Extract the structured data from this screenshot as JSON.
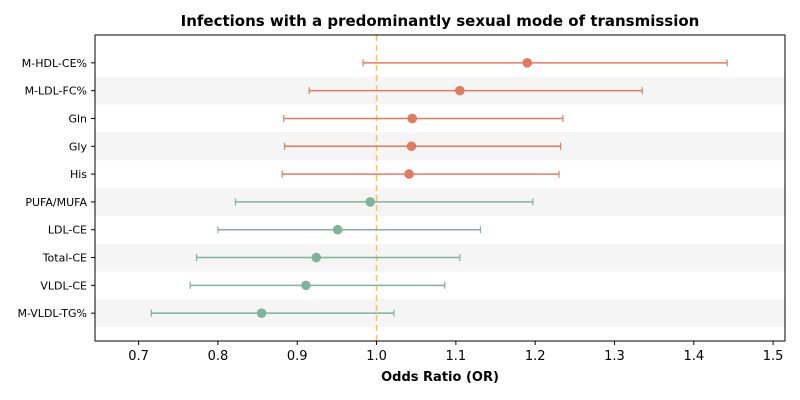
{
  "chart_data": {
    "type": "forest",
    "title": "Infections with a predominantly sexual mode of transmission",
    "xlabel": "Odds Ratio (OR)",
    "ylabel": "",
    "xlim": [
      0.645,
      1.515
    ],
    "xticks": [
      "0.7",
      "0.8",
      "0.9",
      "1.0",
      "1.1",
      "1.2",
      "1.3",
      "1.4",
      "1.5"
    ],
    "reference_line": 1.0,
    "reference_line_style": "dashed",
    "grid": false,
    "row_banding": true,
    "colors": {
      "increased": "#e07b63",
      "decreased": "#7fb39b",
      "reference_line": "#f2c46d",
      "band": "#f5f5f5"
    },
    "rows": [
      {
        "label": "M-HDL-CE%",
        "or": 1.19,
        "lower": 0.983,
        "upper": 1.442,
        "group": "increased"
      },
      {
        "label": "M-LDL-FC%",
        "or": 1.105,
        "lower": 0.915,
        "upper": 1.335,
        "group": "increased"
      },
      {
        "label": "Gln",
        "or": 1.045,
        "lower": 0.883,
        "upper": 1.235,
        "group": "increased"
      },
      {
        "label": "Gly",
        "or": 1.044,
        "lower": 0.884,
        "upper": 1.232,
        "group": "increased"
      },
      {
        "label": "His",
        "or": 1.041,
        "lower": 0.881,
        "upper": 1.23,
        "group": "increased"
      },
      {
        "label": "PUFA/MUFA",
        "or": 0.992,
        "lower": 0.822,
        "upper": 1.197,
        "group": "decreased"
      },
      {
        "label": "LDL-CE",
        "or": 0.951,
        "lower": 0.8,
        "upper": 1.131,
        "group": "decreased"
      },
      {
        "label": "Total-CE",
        "or": 0.924,
        "lower": 0.773,
        "upper": 1.105,
        "group": "decreased"
      },
      {
        "label": "VLDL-CE",
        "or": 0.911,
        "lower": 0.765,
        "upper": 1.086,
        "group": "decreased"
      },
      {
        "label": "M-VLDL-TG%",
        "or": 0.855,
        "lower": 0.716,
        "upper": 1.022,
        "group": "decreased"
      }
    ]
  }
}
